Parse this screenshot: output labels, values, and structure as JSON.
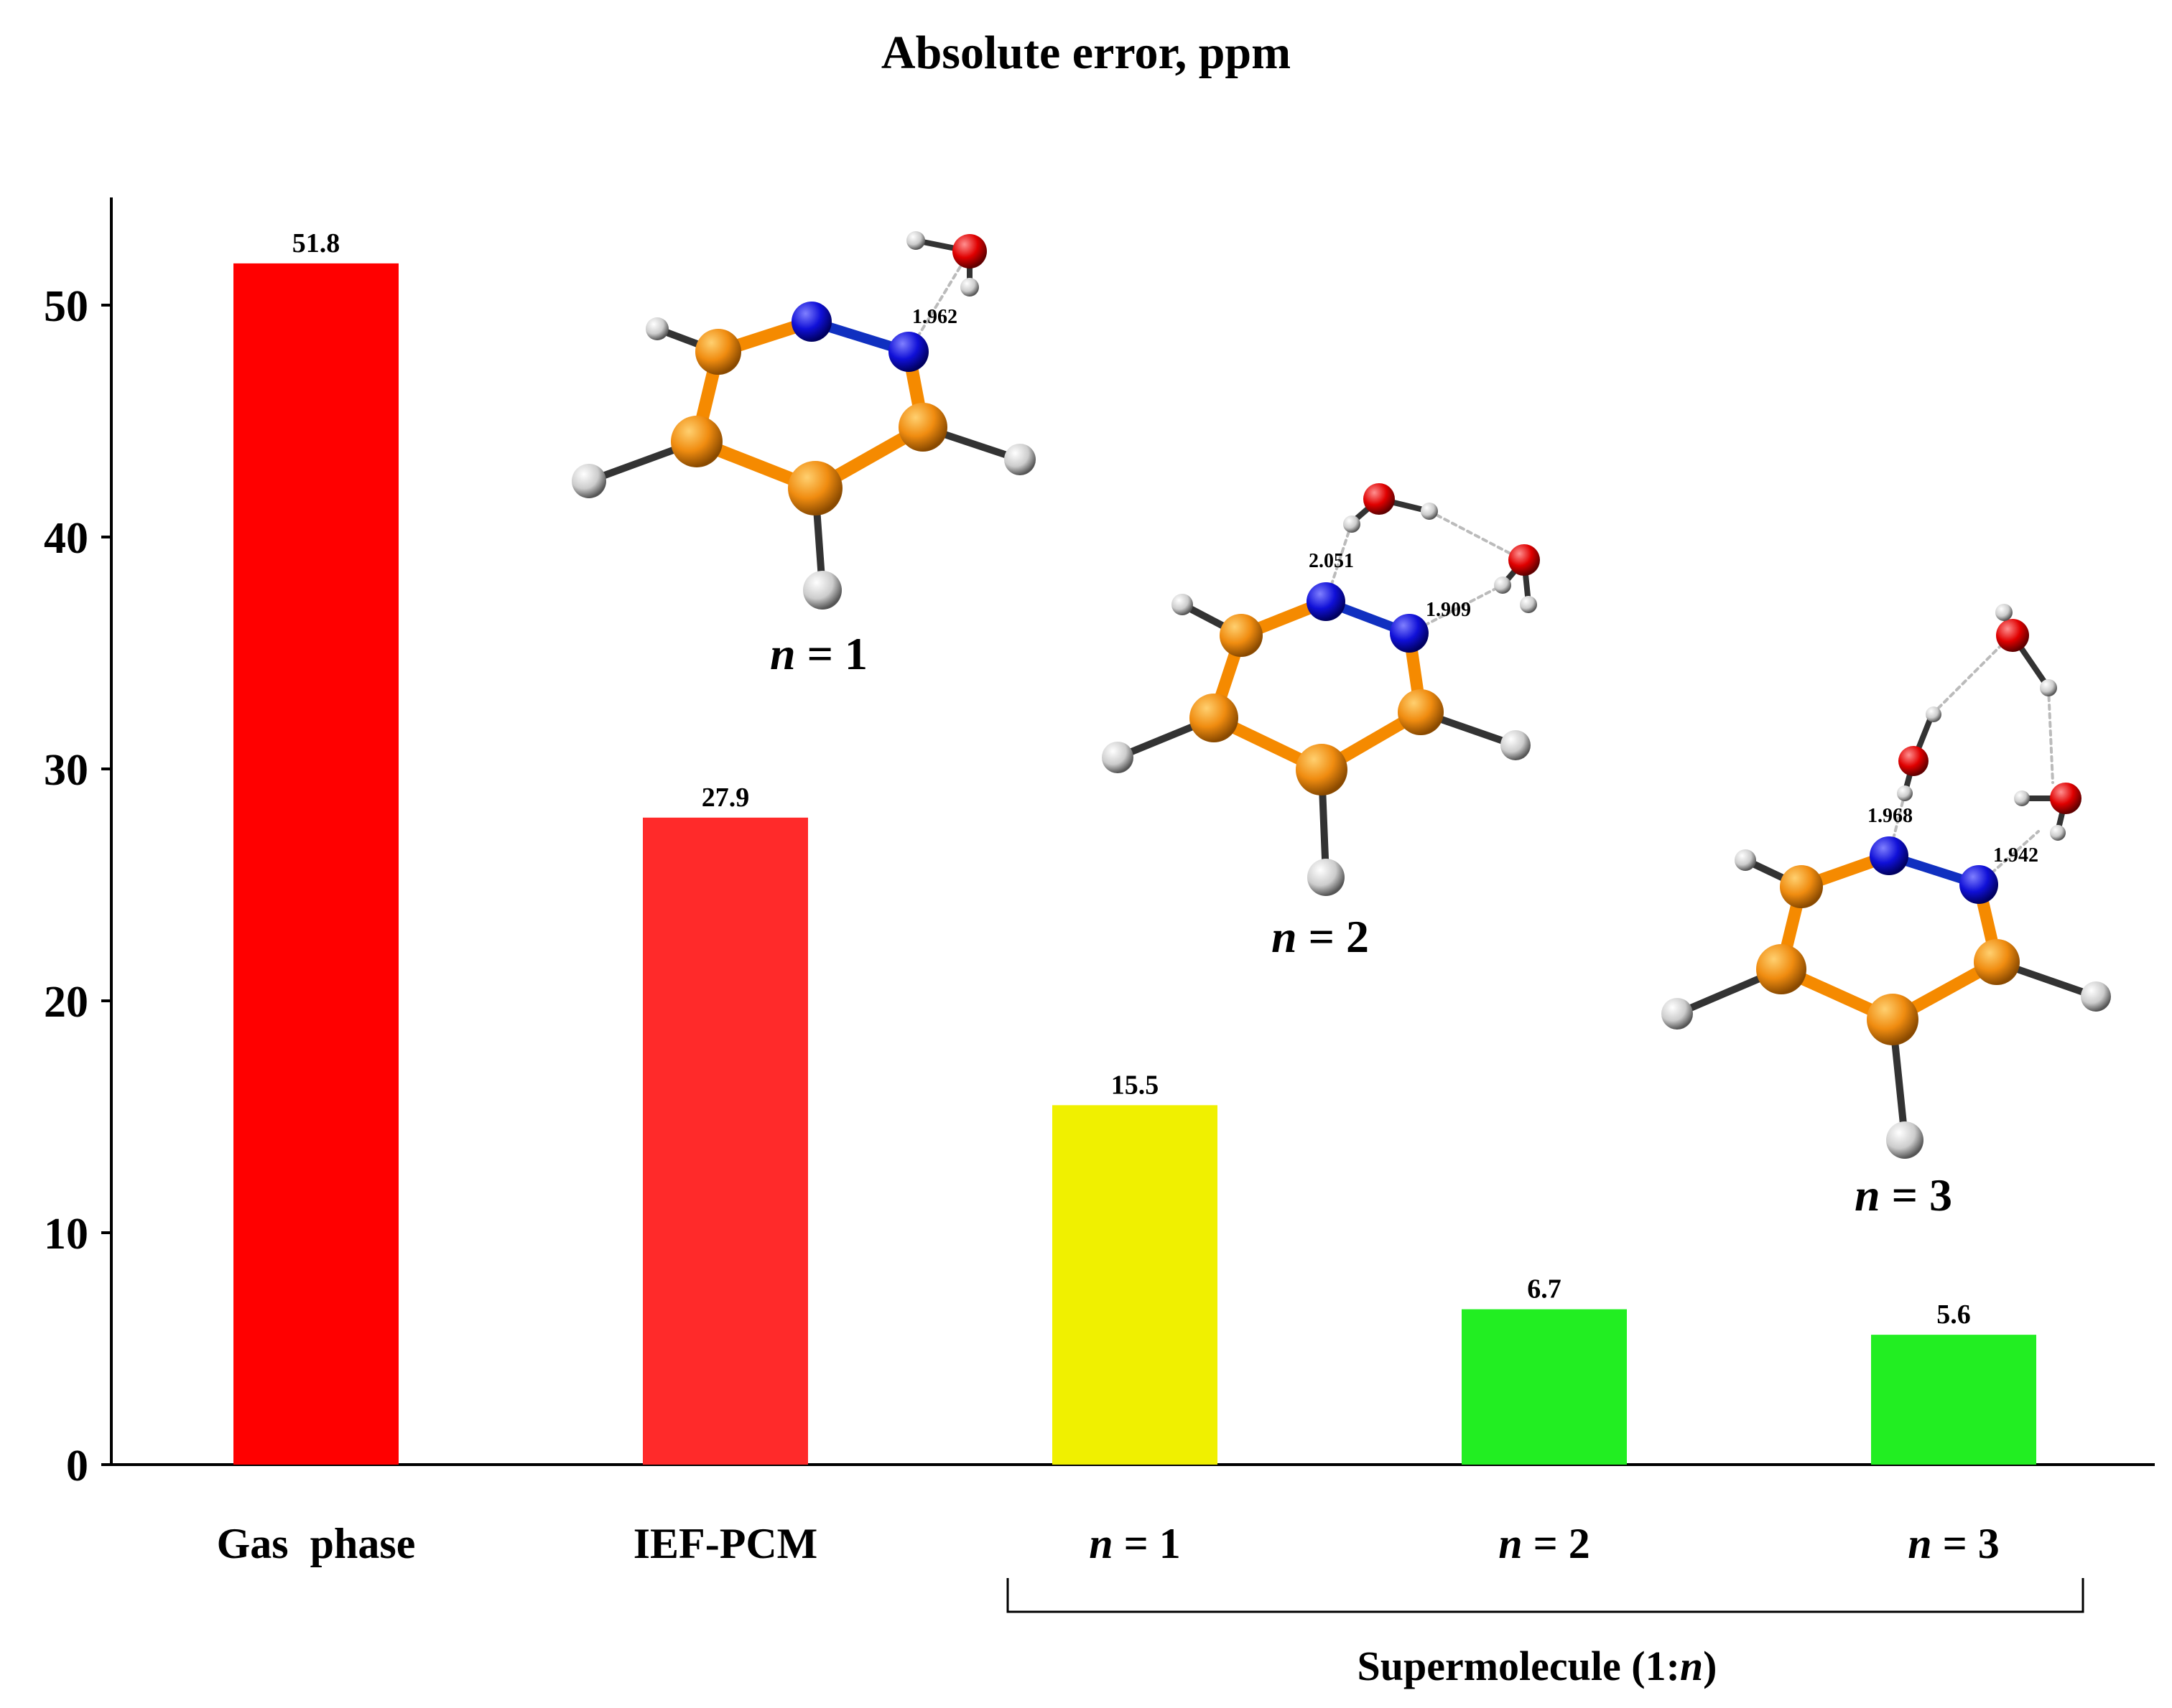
{
  "chart_data": {
    "type": "bar",
    "title": "Absolute error, ppm",
    "xlabel": "",
    "ylabel": "",
    "ylim": [
      0,
      55
    ],
    "yticks": [
      0,
      10,
      20,
      30,
      40,
      50
    ],
    "grid": false,
    "legend": "none",
    "categories": [
      {
        "label": "Gas  phase",
        "italic_prefix": "",
        "rest": ""
      },
      {
        "label": "IEF-PCM",
        "italic_prefix": "",
        "rest": ""
      },
      {
        "label": "",
        "italic_prefix": "n",
        "rest": " = 1"
      },
      {
        "label": "",
        "italic_prefix": "n",
        "rest": " = 2"
      },
      {
        "label": "",
        "italic_prefix": "n",
        "rest": " = 3"
      }
    ],
    "values": [
      51.8,
      27.9,
      15.5,
      6.7,
      5.6
    ],
    "value_labels": [
      "51.8",
      "27.9",
      "15.5",
      "6.7",
      "5.6"
    ],
    "bar_colors": [
      "#ff0000",
      "#ff2a2a",
      "#f0f000",
      "#22ee22",
      "#22ee22"
    ],
    "group_bracket": {
      "label_prefix": "Supermolecule (1:",
      "label_italic": "n",
      "label_suffix": ")",
      "from_category": 2,
      "to_category": 4
    }
  },
  "molecules": [
    {
      "label_italic": "n",
      "label_rest": " = 1",
      "distances": [
        "1.962"
      ]
    },
    {
      "label_italic": "n",
      "label_rest": " = 2",
      "distances": [
        "2.051",
        "1.909"
      ]
    },
    {
      "label_italic": "n",
      "label_rest": " = 3",
      "distances": [
        "1.968",
        "1.942"
      ]
    }
  ],
  "colors": {
    "carbon": "#f08c10",
    "nitrogen": "#1010d8",
    "oxygen": "#e00000",
    "hydrogen": "#d8d8d8",
    "bond_cc": "#f58a00",
    "bond_nn": "#1030c0"
  }
}
